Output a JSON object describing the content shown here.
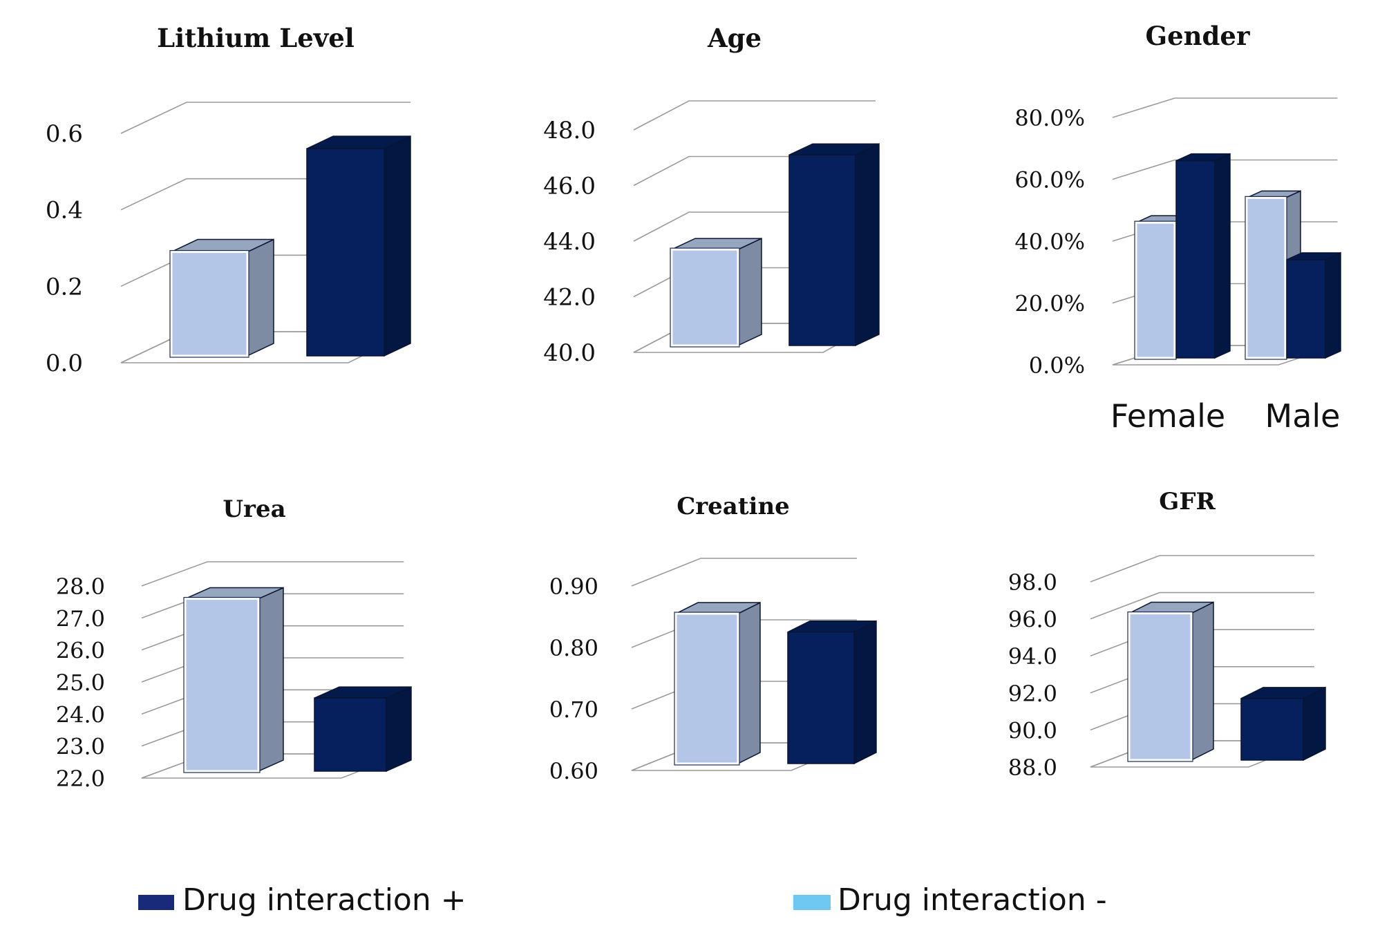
{
  "legend": {
    "positive": {
      "label": "Drug interaction +",
      "color": "#1a2a7a"
    },
    "negative": {
      "label": "Drug interaction -",
      "color": "#6fc8f2"
    }
  },
  "colors": {
    "light_front": "#b4c6e7",
    "light_side": "#7d8ba3",
    "light_top": "#97a6bf",
    "dark_front": "#05205d",
    "dark_side": "#031743",
    "dark_top": "#031a4d"
  },
  "chart_data": [
    {
      "id": "lithium",
      "type": "bar",
      "title": "Lithium Level",
      "categories": [
        ""
      ],
      "series": [
        {
          "name": "Drug interaction -",
          "values": [
            0.29
          ]
        },
        {
          "name": "Drug interaction +",
          "values": [
            0.56
          ]
        }
      ],
      "ylim": [
        0,
        0.6
      ],
      "ticks": [
        0.0,
        0.2,
        0.4,
        0.6
      ],
      "tick_labels": [
        "0.0",
        "0.2",
        "0.4",
        "0.6"
      ],
      "xlabel": "",
      "ylabel": ""
    },
    {
      "id": "age",
      "type": "bar",
      "title": "Age",
      "categories": [
        ""
      ],
      "series": [
        {
          "name": "Drug interaction -",
          "values": [
            43.7
          ]
        },
        {
          "name": "Drug interaction +",
          "values": [
            47.1
          ]
        }
      ],
      "ylim": [
        40,
        48
      ],
      "ticks": [
        40,
        42,
        44,
        46,
        48
      ],
      "tick_labels": [
        "40.0",
        "42.0",
        "44.0",
        "46.0",
        "48.0"
      ],
      "xlabel": "",
      "ylabel": ""
    },
    {
      "id": "gender",
      "type": "bar",
      "title": "Gender",
      "categories": [
        "Female",
        "Male"
      ],
      "series": [
        {
          "name": "Drug interaction -",
          "values": [
            46,
            54
          ]
        },
        {
          "name": "Drug interaction +",
          "values": [
            66,
            34
          ]
        }
      ],
      "ylim": [
        0,
        80
      ],
      "ticks": [
        0,
        20,
        40,
        60,
        80
      ],
      "tick_labels": [
        "0.0%",
        "20.0%",
        "40.0%",
        "60.0%",
        "80.0%"
      ],
      "xlabel": "",
      "ylabel": ""
    },
    {
      "id": "urea",
      "type": "bar",
      "title": "Urea",
      "categories": [
        ""
      ],
      "series": [
        {
          "name": "Drug interaction -",
          "values": [
            27.6
          ]
        },
        {
          "name": "Drug interaction +",
          "values": [
            24.5
          ]
        }
      ],
      "ylim": [
        22,
        28
      ],
      "ticks": [
        22,
        23,
        24,
        25,
        26,
        27,
        28
      ],
      "tick_labels": [
        "22.0",
        "23.0",
        "24.0",
        "25.0",
        "26.0",
        "27.0",
        "28.0"
      ],
      "xlabel": "",
      "ylabel": ""
    },
    {
      "id": "creatine",
      "type": "bar",
      "title": "Creatine",
      "categories": [
        ""
      ],
      "series": [
        {
          "name": "Drug interaction -",
          "values": [
            0.855
          ]
        },
        {
          "name": "Drug interaction +",
          "values": [
            0.825
          ]
        }
      ],
      "ylim": [
        0.6,
        0.9
      ],
      "ticks": [
        0.6,
        0.7,
        0.8,
        0.9
      ],
      "tick_labels": [
        "0.60",
        "0.70",
        "0.80",
        "0.90"
      ],
      "xlabel": "",
      "ylabel": ""
    },
    {
      "id": "gfr",
      "type": "bar",
      "title": "GFR",
      "categories": [
        ""
      ],
      "series": [
        {
          "name": "Drug interaction -",
          "values": [
            96.3
          ]
        },
        {
          "name": "Drug interaction +",
          "values": [
            91.7
          ]
        }
      ],
      "ylim": [
        88,
        98
      ],
      "ticks": [
        88,
        90,
        92,
        94,
        96,
        98
      ],
      "tick_labels": [
        "88.0",
        "90.0",
        "92.0",
        "94.0",
        "96.0",
        "98.0"
      ],
      "xlabel": "",
      "ylabel": ""
    }
  ]
}
